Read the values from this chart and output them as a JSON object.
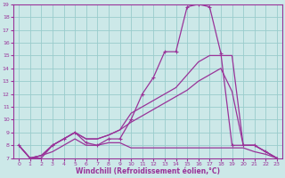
{
  "xlabel": "Windchill (Refroidissement éolien,°C)",
  "bg_color": "#cce8e8",
  "line_color": "#993399",
  "grid_color": "#99cccc",
  "xlim": [
    -0.5,
    23.5
  ],
  "ylim": [
    7,
    19
  ],
  "yticks": [
    7,
    8,
    9,
    10,
    11,
    12,
    13,
    14,
    15,
    16,
    17,
    18,
    19
  ],
  "xticks": [
    0,
    1,
    2,
    3,
    4,
    5,
    6,
    7,
    8,
    9,
    10,
    11,
    12,
    13,
    14,
    15,
    16,
    17,
    18,
    19,
    20,
    21,
    22,
    23
  ],
  "lines": [
    {
      "x": [
        0,
        1,
        2,
        3,
        4,
        5,
        6,
        7,
        8,
        9,
        10,
        11,
        12,
        13,
        14,
        15,
        16,
        17,
        18,
        19,
        20,
        21,
        22,
        23
      ],
      "y": [
        8.0,
        7.0,
        7.0,
        8.0,
        8.5,
        9.0,
        8.2,
        8.0,
        8.5,
        8.5,
        10.0,
        12.0,
        13.3,
        15.3,
        15.3,
        18.8,
        19.0,
        18.8,
        15.2,
        8.0,
        8.0,
        8.0,
        7.5,
        7.0
      ],
      "marker": true
    },
    {
      "x": [
        0,
        1,
        2,
        3,
        4,
        5,
        6,
        7,
        8,
        9,
        10,
        11,
        12,
        13,
        14,
        15,
        16,
        17,
        18,
        19,
        20,
        21,
        22,
        23
      ],
      "y": [
        8.0,
        7.0,
        7.2,
        8.0,
        8.5,
        9.0,
        8.5,
        8.5,
        8.8,
        9.2,
        9.8,
        10.3,
        10.8,
        11.3,
        11.8,
        12.3,
        13.0,
        13.5,
        14.0,
        12.2,
        8.0,
        8.0,
        7.5,
        7.0
      ],
      "marker": false
    },
    {
      "x": [
        0,
        1,
        2,
        3,
        4,
        5,
        6,
        7,
        8,
        9,
        10,
        11,
        12,
        13,
        14,
        15,
        16,
        17,
        18,
        19,
        20,
        21,
        22,
        23
      ],
      "y": [
        8.0,
        7.0,
        7.2,
        8.0,
        8.5,
        9.0,
        8.5,
        8.5,
        8.8,
        9.2,
        10.5,
        11.0,
        11.5,
        12.0,
        12.5,
        13.5,
        14.5,
        15.0,
        15.0,
        15.0,
        8.0,
        8.0,
        7.5,
        7.0
      ],
      "marker": false
    },
    {
      "x": [
        0,
        1,
        2,
        3,
        4,
        5,
        6,
        7,
        8,
        9,
        10,
        11,
        12,
        13,
        14,
        15,
        16,
        17,
        18,
        19,
        20,
        21,
        22,
        23
      ],
      "y": [
        8.0,
        7.0,
        7.2,
        7.5,
        8.0,
        8.5,
        8.0,
        8.0,
        8.2,
        8.2,
        7.8,
        7.8,
        7.8,
        7.8,
        7.8,
        7.8,
        7.8,
        7.8,
        7.8,
        7.8,
        7.8,
        7.5,
        7.3,
        7.0
      ],
      "marker": false
    }
  ]
}
